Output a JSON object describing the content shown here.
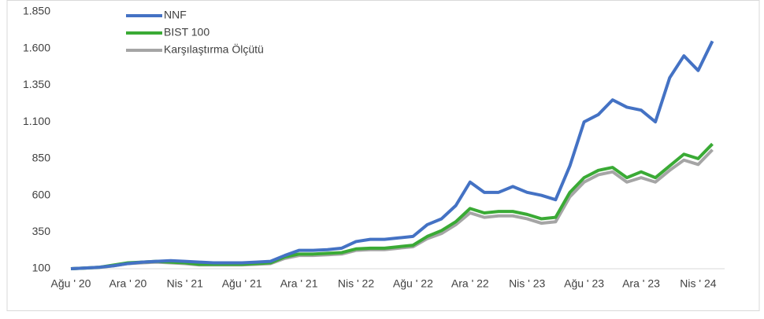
{
  "chart_data": {
    "type": "line",
    "categories": [
      "Ağu ' 20",
      null,
      null,
      null,
      "Ara ' 20",
      null,
      null,
      null,
      "Nis ' 21",
      null,
      null,
      null,
      "Ağu ' 21",
      null,
      null,
      null,
      "Ara ' 21",
      null,
      null,
      null,
      "Nis ' 22",
      null,
      null,
      null,
      "Ağu ' 22",
      null,
      null,
      null,
      "Ara ' 22",
      null,
      null,
      null,
      "Nis ' 23",
      null,
      null,
      null,
      "Ağu ' 23",
      null,
      null,
      null,
      "Ara ' 23",
      null,
      null,
      null,
      "Nis ' 24",
      null
    ],
    "series": [
      {
        "name": "NNF",
        "color": "#4472c4",
        "values": [
          100,
          105,
          110,
          120,
          135,
          145,
          150,
          155,
          150,
          145,
          140,
          140,
          140,
          145,
          150,
          190,
          225,
          225,
          230,
          240,
          285,
          300,
          300,
          310,
          320,
          400,
          440,
          530,
          690,
          620,
          620,
          660,
          620,
          600,
          570,
          800,
          1100,
          1150,
          1250,
          1200,
          1180,
          1100,
          1400,
          1550,
          1450,
          1650
        ]
      },
      {
        "name": "BIST 100",
        "color": "#3aaa35",
        "values": [
          100,
          105,
          110,
          125,
          140,
          145,
          150,
          145,
          140,
          130,
          130,
          130,
          130,
          135,
          140,
          180,
          200,
          200,
          205,
          210,
          235,
          240,
          240,
          250,
          260,
          320,
          360,
          420,
          510,
          480,
          490,
          490,
          470,
          440,
          450,
          620,
          720,
          770,
          790,
          720,
          760,
          720,
          800,
          880,
          850,
          950
        ]
      },
      {
        "name": "Karşılaştırma Ölçütü",
        "color": "#a5a5a5",
        "values": [
          100,
          104,
          108,
          120,
          135,
          140,
          145,
          140,
          135,
          126,
          126,
          126,
          126,
          130,
          135,
          170,
          190,
          190,
          195,
          200,
          225,
          230,
          230,
          240,
          250,
          305,
          340,
          400,
          480,
          450,
          460,
          460,
          440,
          410,
          420,
          590,
          690,
          740,
          760,
          690,
          720,
          690,
          770,
          840,
          810,
          910
        ]
      }
    ],
    "ylim": [
      100,
      1850
    ],
    "yticks": [
      100,
      350,
      600,
      850,
      {
        "value": 1100,
        "label": "1.100"
      },
      {
        "value": 1350,
        "label": "1.350"
      },
      {
        "value": 1600,
        "label": "1.600"
      },
      {
        "value": 1850,
        "label": "1.850"
      }
    ],
    "legend": "upper left"
  }
}
